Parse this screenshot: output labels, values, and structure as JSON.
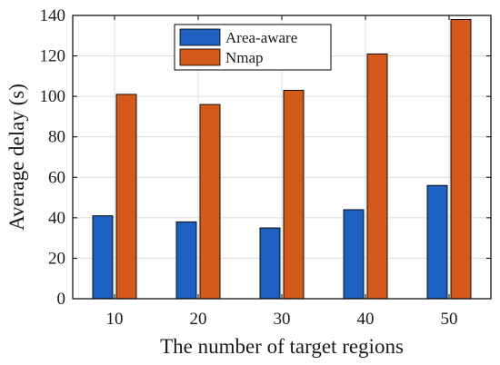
{
  "chart_data": {
    "type": "bar",
    "categories": [
      "10",
      "20",
      "30",
      "40",
      "50"
    ],
    "series": [
      {
        "name": "Area-aware",
        "values": [
          41,
          38,
          35,
          44,
          56
        ],
        "color": "#1f5fbf"
      },
      {
        "name": "Nmap",
        "values": [
          101,
          96,
          103,
          121,
          138
        ],
        "color": "#d45a1c"
      }
    ],
    "xlabel": "The number of target regions",
    "ylabel": "Average delay (s)",
    "ylim": [
      0,
      140
    ],
    "yticks": [
      "0",
      "20",
      "40",
      "60",
      "80",
      "100",
      "120",
      "140"
    ],
    "grid": true,
    "legend_position": "top-center",
    "bar_edge_color": "#000000"
  }
}
